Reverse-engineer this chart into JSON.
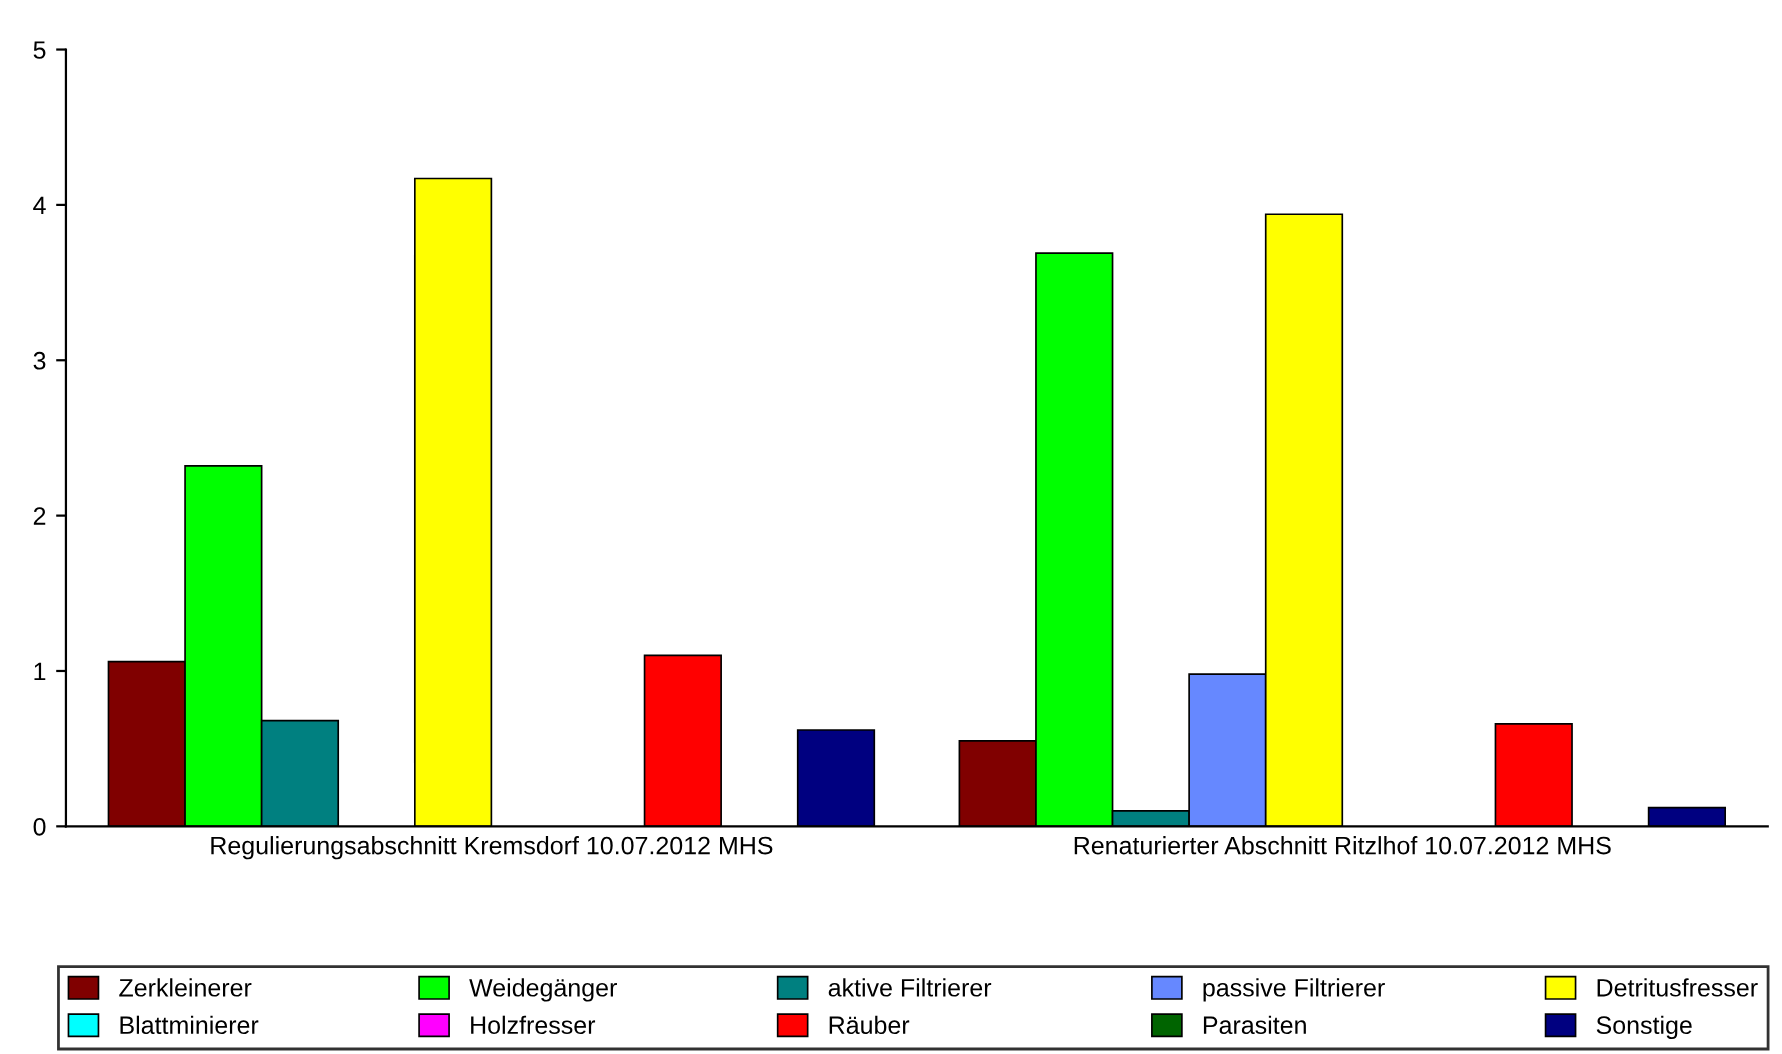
{
  "chart_data": {
    "type": "bar",
    "categories": [
      "Regulierungsabschnitt Kremsdorf 10.07.2012 MHS",
      "Renaturierter Abschnitt Ritzlhof 10.07.2012 MHS"
    ],
    "series": [
      {
        "name": "Zerkleinerer",
        "color": "#800000",
        "values": [
          1.06,
          0.55
        ]
      },
      {
        "name": "Weidegänger",
        "color": "#00ff00",
        "values": [
          2.32,
          3.69
        ]
      },
      {
        "name": "aktive Filtrierer",
        "color": "#008080",
        "values": [
          0.68,
          0.1
        ]
      },
      {
        "name": "passive Filtrierer",
        "color": "#6688ff",
        "values": [
          0,
          0.98
        ]
      },
      {
        "name": "Detritusfresser",
        "color": "#ffff00",
        "values": [
          4.17,
          3.94
        ]
      },
      {
        "name": "Blattminierer",
        "color": "#00ffff",
        "values": [
          0,
          0
        ]
      },
      {
        "name": "Holzfresser",
        "color": "#ff00ff",
        "values": [
          0,
          0
        ]
      },
      {
        "name": "Räuber",
        "color": "#ff0000",
        "values": [
          1.1,
          0.66
        ]
      },
      {
        "name": "Parasiten",
        "color": "#006400",
        "values": [
          0,
          0
        ]
      },
      {
        "name": "Sonstige",
        "color": "#000080",
        "values": [
          0.62,
          0.12
        ]
      }
    ],
    "ylim": [
      0,
      5
    ],
    "yticks": [
      0,
      1,
      2,
      3,
      4,
      5
    ],
    "grid": false,
    "legend": "bottom"
  }
}
